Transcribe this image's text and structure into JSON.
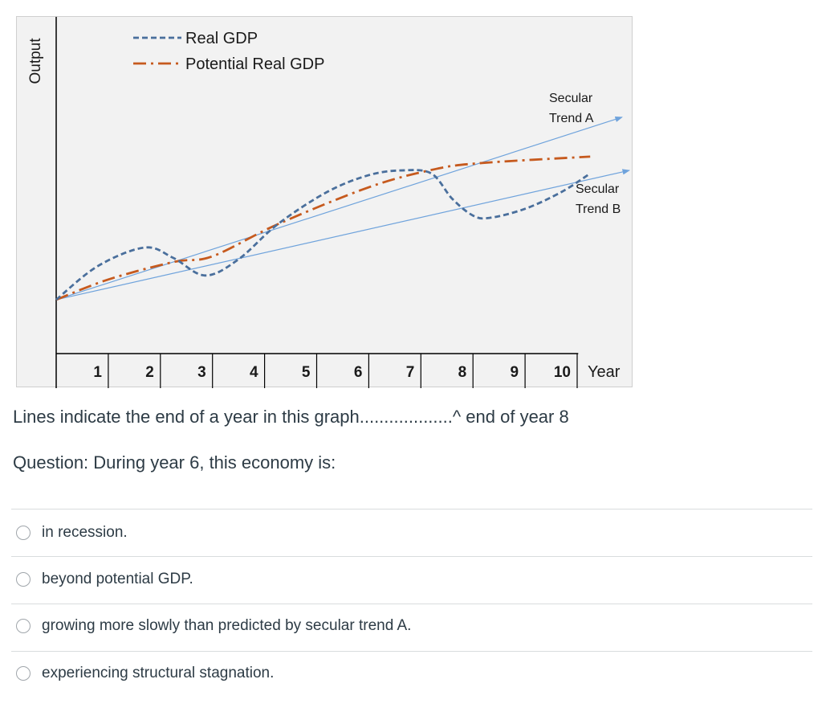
{
  "chart_data": {
    "type": "line",
    "ylabel": "Output",
    "xlabel": "Year",
    "x_ticks": [
      "1",
      "2",
      "3",
      "4",
      "5",
      "6",
      "7",
      "8",
      "9",
      "10"
    ],
    "xlim": [
      0,
      11
    ],
    "ylim": [
      0,
      100
    ],
    "legend_position": "top-left",
    "grid": false,
    "series": [
      {
        "name": "Real GDP",
        "style": "dashed",
        "color": "#4a6f9c",
        "points": [
          [
            0,
            16
          ],
          [
            0.8,
            26
          ],
          [
            1.7,
            31.5
          ],
          [
            2.25,
            28.4
          ],
          [
            2.86,
            23.2
          ],
          [
            3.5,
            28
          ],
          [
            4.25,
            38.4
          ],
          [
            5.2,
            48
          ],
          [
            6,
            53
          ],
          [
            6.63,
            54.4
          ],
          [
            7.2,
            53.5
          ],
          [
            7.6,
            46
          ],
          [
            8.0,
            41
          ],
          [
            8.32,
            40.3
          ],
          [
            9.0,
            43
          ],
          [
            9.7,
            48
          ],
          [
            10.25,
            53.5
          ]
        ]
      },
      {
        "name": "Potential Real GDP",
        "style": "dash-dot",
        "color": "#c65a1e",
        "points": [
          [
            0,
            16
          ],
          [
            1,
            22
          ],
          [
            2.25,
            27.2
          ],
          [
            3,
            28.9
          ],
          [
            4.25,
            38.4
          ],
          [
            6,
            49.4
          ],
          [
            7.25,
            54.7
          ],
          [
            8.17,
            56.6
          ],
          [
            10.25,
            58.5
          ]
        ]
      }
    ],
    "trend_lines": [
      {
        "label_line1": "Secular",
        "label_line2": "Trend A",
        "color": "#6fa3dc",
        "points": [
          [
            0,
            16
          ],
          [
            10.86,
            70.2
          ]
        ]
      },
      {
        "label_line1": "Secular",
        "label_line2": "Trend B",
        "color": "#6fa3dc",
        "points": [
          [
            0,
            16
          ],
          [
            11,
            54.4
          ]
        ]
      }
    ]
  },
  "note": "Lines indicate the end of a year in this graph...................^ end of year 8",
  "question": "Question: During year 6, this economy is:",
  "options": [
    {
      "label": "in recession.",
      "selected": false
    },
    {
      "label": "beyond potential GDP.",
      "selected": false
    },
    {
      "label": "growing more slowly than predicted by secular trend A.",
      "selected": false
    },
    {
      "label": "experiencing structural stagnation.",
      "selected": false
    }
  ]
}
